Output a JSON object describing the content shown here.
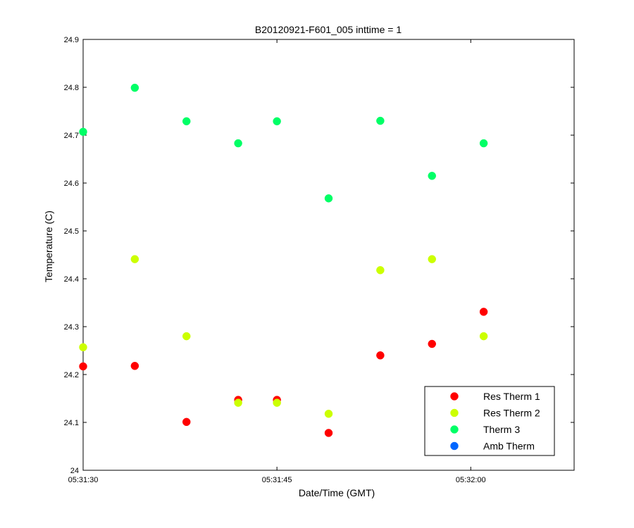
{
  "chart_data": {
    "type": "scatter",
    "title": "B20120921-F601_005 inttime = 1",
    "xlabel": "Date/Time (GMT)",
    "ylabel": "Temperature (C)",
    "x_unit": "time (HH:MM:SS, GMT)",
    "xlim": [
      "05:31:30",
      "05:32:08"
    ],
    "ylim": [
      24,
      24.9
    ],
    "xticks": [
      "05:31:30",
      "05:31:45",
      "05:32:00"
    ],
    "yticks": [
      "24",
      "24.1",
      "24.2",
      "24.3",
      "24.4",
      "24.5",
      "24.6",
      "24.7",
      "24.8",
      "24.9"
    ],
    "grid": false,
    "legend_position": "bottom-right",
    "series": [
      {
        "name": "Res Therm 1",
        "color": "#ff0000",
        "points": [
          {
            "x": "05:31:30",
            "y": 24.217
          },
          {
            "x": "05:31:34",
            "y": 24.218
          },
          {
            "x": "05:31:38",
            "y": 24.101
          },
          {
            "x": "05:31:42",
            "y": 24.147
          },
          {
            "x": "05:31:45",
            "y": 24.147
          },
          {
            "x": "05:31:49",
            "y": 24.078
          },
          {
            "x": "05:31:53",
            "y": 24.24
          },
          {
            "x": "05:31:57",
            "y": 24.264
          },
          {
            "x": "05:32:01",
            "y": 24.331
          }
        ]
      },
      {
        "name": "Res Therm 2",
        "color": "#ccff00",
        "points": [
          {
            "x": "05:31:30",
            "y": 24.257
          },
          {
            "x": "05:31:34",
            "y": 24.441
          },
          {
            "x": "05:31:38",
            "y": 24.28
          },
          {
            "x": "05:31:42",
            "y": 24.141
          },
          {
            "x": "05:31:45",
            "y": 24.141
          },
          {
            "x": "05:31:49",
            "y": 24.118
          },
          {
            "x": "05:31:53",
            "y": 24.418
          },
          {
            "x": "05:31:57",
            "y": 24.441
          },
          {
            "x": "05:32:01",
            "y": 24.28
          }
        ]
      },
      {
        "name": "Therm 3",
        "color": "#00ff66",
        "points": [
          {
            "x": "05:31:30",
            "y": 24.707
          },
          {
            "x": "05:31:34",
            "y": 24.799
          },
          {
            "x": "05:31:38",
            "y": 24.729
          },
          {
            "x": "05:31:42",
            "y": 24.683
          },
          {
            "x": "05:31:45",
            "y": 24.729
          },
          {
            "x": "05:31:49",
            "y": 24.568
          },
          {
            "x": "05:31:53",
            "y": 24.73
          },
          {
            "x": "05:31:57",
            "y": 24.615
          },
          {
            "x": "05:32:01",
            "y": 24.683
          }
        ]
      },
      {
        "name": "Amb Therm",
        "color": "#0066ff",
        "points": []
      }
    ]
  }
}
